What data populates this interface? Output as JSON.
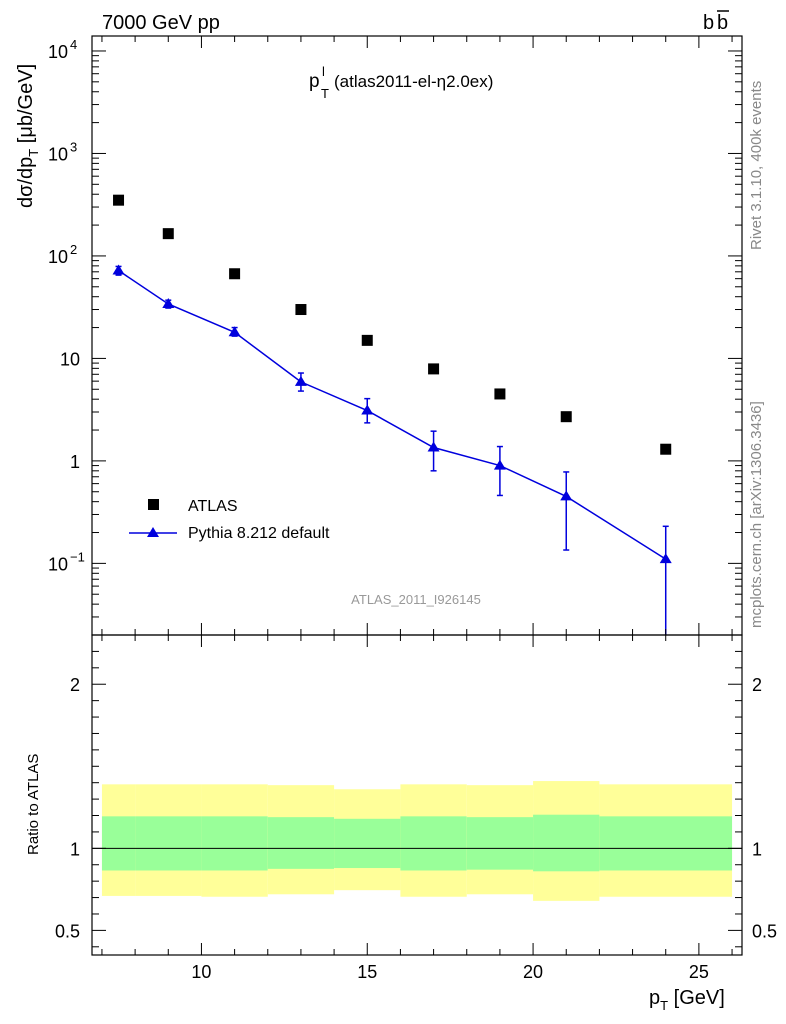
{
  "header": {
    "beam": "7000 GeV pp",
    "process_prefix": "b",
    "process_bar": "b"
  },
  "plot_title": {
    "main": "p",
    "sup": "l",
    "sub": "T",
    "rest": " (atlas2011-el-η2.0ex)"
  },
  "side_labels": {
    "rivet": "Rivet 3.1.10,  400k events",
    "mcplots": "mcplots.cern.ch [arXiv:1306.3436]"
  },
  "watermark": "ATLAS_2011_I926145",
  "colors": {
    "data": "#000000",
    "mc": "#0000dd",
    "band_inner": "#99ff99",
    "band_outer": "#ffff99"
  },
  "chart_data": [
    {
      "type": "scatter",
      "title": "p_T^l (atlas2011-el-η2.0ex)",
      "ylabel": "dσ/dp_T [μb/GeV]",
      "yscale": "log",
      "xlim": [
        6.7,
        26.3
      ],
      "ylim": [
        0.02,
        14000
      ],
      "ytick_labels": [
        "10^-1",
        "1",
        "10",
        "10^2",
        "10^3",
        "10^4"
      ],
      "legend": [
        "ATLAS",
        "Pythia 8.212 default"
      ],
      "bins": [
        [
          7,
          8
        ],
        [
          8,
          10
        ],
        [
          10,
          12
        ],
        [
          12,
          14
        ],
        [
          14,
          16
        ],
        [
          16,
          18
        ],
        [
          18,
          20
        ],
        [
          20,
          22
        ],
        [
          22,
          26
        ]
      ],
      "series": [
        {
          "name": "ATLAS",
          "x": [
            7.5,
            9,
            11,
            13,
            15,
            17,
            19,
            21,
            24
          ],
          "values": [
            350,
            165,
            67,
            30,
            15,
            7.9,
            4.5,
            2.7,
            1.3
          ]
        },
        {
          "name": "Pythia 8.212 default",
          "x": [
            7.5,
            9,
            11,
            13,
            15,
            17,
            19,
            21,
            24
          ],
          "values": [
            72,
            34,
            18,
            5.9,
            3.1,
            1.35,
            0.9,
            0.45,
            0.11
          ],
          "err_low": [
            65,
            31,
            16.5,
            4.8,
            2.35,
            0.8,
            0.46,
            0.135,
            0.005
          ],
          "err_high": [
            79,
            37,
            20,
            7.2,
            4.05,
            1.95,
            1.38,
            0.78,
            0.23
          ]
        }
      ]
    },
    {
      "type": "area",
      "ylabel": "Ratio to ATLAS",
      "xlabel": "p_T [GeV]",
      "xlim": [
        6.7,
        26.3
      ],
      "ylim": [
        0.35,
        2.3
      ],
      "xtick_labels": [
        "10",
        "15",
        "20",
        "25"
      ],
      "ytick_labels": [
        "0.5",
        "1",
        "2"
      ],
      "reference_line": 1,
      "bins": [
        [
          7,
          8
        ],
        [
          8,
          10
        ],
        [
          10,
          12
        ],
        [
          12,
          14
        ],
        [
          14,
          16
        ],
        [
          16,
          18
        ],
        [
          18,
          20
        ],
        [
          20,
          22
        ],
        [
          22,
          26
        ]
      ],
      "band_inner_low": [
        0.865,
        0.865,
        0.865,
        0.875,
        0.88,
        0.865,
        0.87,
        0.86,
        0.865
      ],
      "band_inner_high": [
        1.195,
        1.195,
        1.195,
        1.19,
        1.18,
        1.195,
        1.19,
        1.205,
        1.195
      ],
      "band_outer_low": [
        0.71,
        0.71,
        0.705,
        0.72,
        0.745,
        0.705,
        0.72,
        0.68,
        0.705
      ],
      "band_outer_high": [
        1.39,
        1.39,
        1.39,
        1.385,
        1.36,
        1.39,
        1.385,
        1.41,
        1.39
      ]
    }
  ]
}
